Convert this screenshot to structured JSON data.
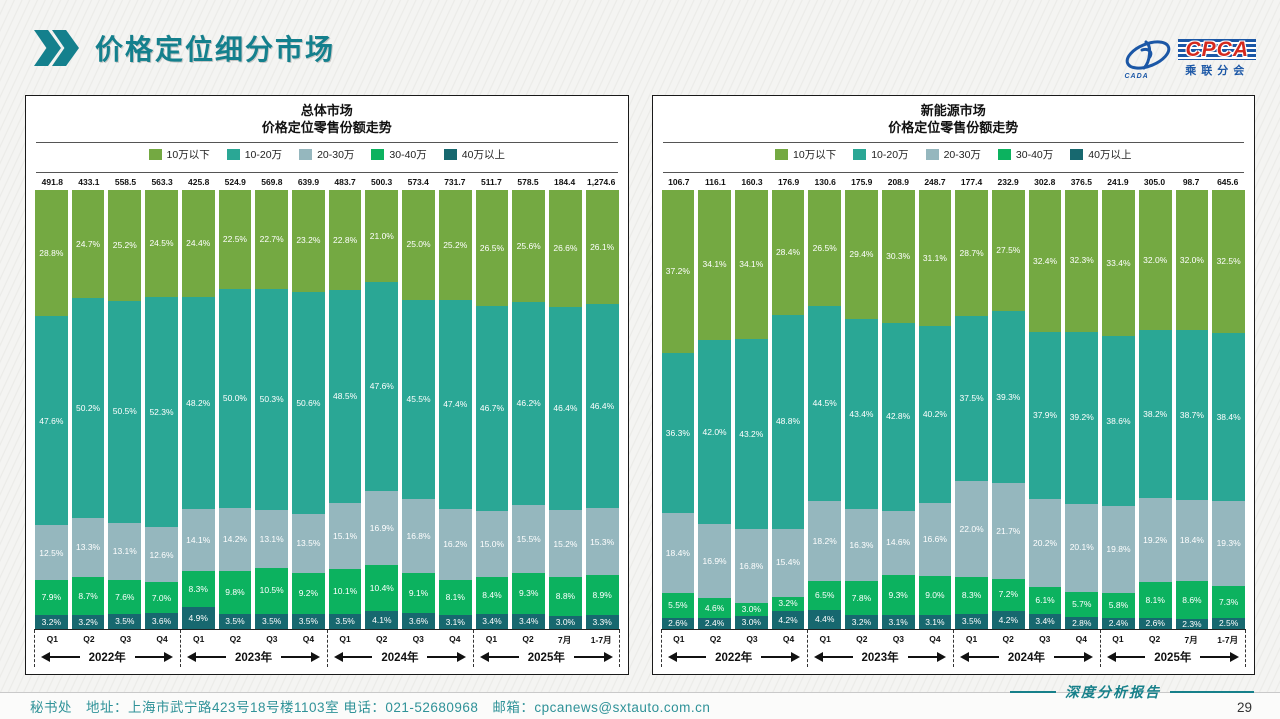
{
  "header": {
    "title": "价格定位细分市场",
    "logo": {
      "main": "CPCA",
      "sub_cn": "乘联分会",
      "side": "CADA"
    }
  },
  "legend": {
    "items": [
      "10万以下",
      "10-20万",
      "20-30万",
      "30-40万",
      "40万以上"
    ]
  },
  "series_colors": [
    "#74a942",
    "#2aa795",
    "#95b7be",
    "#0cb25f",
    "#17686f"
  ],
  "accent_color": "#14808d",
  "chart_data": [
    {
      "type": "bar",
      "stacked": true,
      "stack_order": "top-to-bottom",
      "title": "总体市场",
      "subtitle": "价格定位零售份额走势",
      "ylim": [
        0,
        100
      ],
      "grid": false,
      "legend_position": "top",
      "categories": [
        "Q1",
        "Q2",
        "Q3",
        "Q4",
        "Q1",
        "Q2",
        "Q3",
        "Q4",
        "Q1",
        "Q2",
        "Q3",
        "Q4",
        "Q1",
        "Q2",
        "7月",
        "1-7月"
      ],
      "year_groups": [
        "2022年",
        "2023年",
        "2024年",
        "2025年"
      ],
      "totals": [
        "491.8",
        "433.1",
        "558.5",
        "563.3",
        "425.8",
        "524.9",
        "569.8",
        "639.9",
        "483.7",
        "500.3",
        "573.4",
        "731.7",
        "511.7",
        "578.5",
        "184.4",
        "1,274.6"
      ],
      "series": [
        {
          "name": "10万以下",
          "values": [
            28.8,
            24.7,
            25.2,
            24.5,
            24.4,
            22.5,
            22.7,
            23.2,
            22.8,
            21.0,
            25.0,
            25.2,
            26.5,
            25.6,
            26.6,
            26.1
          ]
        },
        {
          "name": "10-20万",
          "values": [
            47.6,
            50.2,
            50.5,
            52.3,
            48.2,
            50.0,
            50.3,
            50.6,
            48.5,
            47.6,
            45.5,
            47.4,
            46.7,
            46.2,
            46.4,
            46.4
          ]
        },
        {
          "name": "20-30万",
          "values": [
            12.5,
            13.3,
            13.1,
            12.6,
            14.1,
            14.2,
            13.1,
            13.5,
            15.1,
            16.9,
            16.8,
            16.2,
            15.0,
            15.5,
            15.2,
            15.3
          ]
        },
        {
          "name": "30-40万",
          "values": [
            7.9,
            8.7,
            7.6,
            7.0,
            8.3,
            9.8,
            10.5,
            9.2,
            10.1,
            10.4,
            9.1,
            8.1,
            8.4,
            9.3,
            8.8,
            8.9
          ]
        },
        {
          "name": "40万以上",
          "values": [
            3.2,
            3.2,
            3.5,
            3.6,
            4.9,
            3.5,
            3.5,
            3.5,
            3.5,
            4.1,
            3.6,
            3.1,
            3.4,
            3.4,
            3.0,
            3.3
          ]
        }
      ]
    },
    {
      "type": "bar",
      "stacked": true,
      "stack_order": "top-to-bottom",
      "title": "新能源市场",
      "subtitle": "价格定位零售份额走势",
      "ylim": [
        0,
        100
      ],
      "grid": false,
      "legend_position": "top",
      "categories": [
        "Q1",
        "Q2",
        "Q3",
        "Q4",
        "Q1",
        "Q2",
        "Q3",
        "Q4",
        "Q1",
        "Q2",
        "Q3",
        "Q4",
        "Q1",
        "Q2",
        "7月",
        "1-7月"
      ],
      "year_groups": [
        "2022年",
        "2023年",
        "2024年",
        "2025年"
      ],
      "totals": [
        "106.7",
        "116.1",
        "160.3",
        "176.9",
        "130.6",
        "175.9",
        "208.9",
        "248.7",
        "177.4",
        "232.9",
        "302.8",
        "376.5",
        "241.9",
        "305.0",
        "98.7",
        "645.6"
      ],
      "series": [
        {
          "name": "10万以下",
          "values": [
            37.2,
            34.1,
            34.1,
            28.4,
            26.5,
            29.4,
            30.3,
            31.1,
            28.7,
            27.5,
            32.4,
            32.3,
            33.4,
            32.0,
            32.0,
            32.5
          ]
        },
        {
          "name": "10-20万",
          "values": [
            36.3,
            42.0,
            43.2,
            48.8,
            44.5,
            43.4,
            42.8,
            40.2,
            37.5,
            39.3,
            37.9,
            39.2,
            38.6,
            38.2,
            38.7,
            38.4
          ]
        },
        {
          "name": "20-30万",
          "values": [
            18.4,
            16.9,
            16.8,
            15.4,
            18.2,
            16.3,
            14.6,
            16.6,
            22.0,
            21.7,
            20.2,
            20.1,
            19.8,
            19.2,
            18.4,
            19.3
          ]
        },
        {
          "name": "30-40万",
          "values": [
            5.5,
            4.6,
            3.0,
            3.2,
            6.5,
            7.8,
            9.3,
            9.0,
            8.3,
            7.2,
            6.1,
            5.7,
            5.8,
            8.1,
            8.6,
            7.3
          ]
        },
        {
          "name": "40万以上",
          "values": [
            2.6,
            2.4,
            3.0,
            4.2,
            4.4,
            3.2,
            3.1,
            3.1,
            3.5,
            4.2,
            3.4,
            2.8,
            2.4,
            2.6,
            2.3,
            2.5
          ]
        }
      ]
    }
  ],
  "footer": {
    "info": "秘书处　地址：上海市武宁路423号18号楼1103室  电话：021-52680968　邮箱：cpcanews@sxtauto.com.cn",
    "report_tag": "深度分析报告",
    "page_number": "29"
  }
}
